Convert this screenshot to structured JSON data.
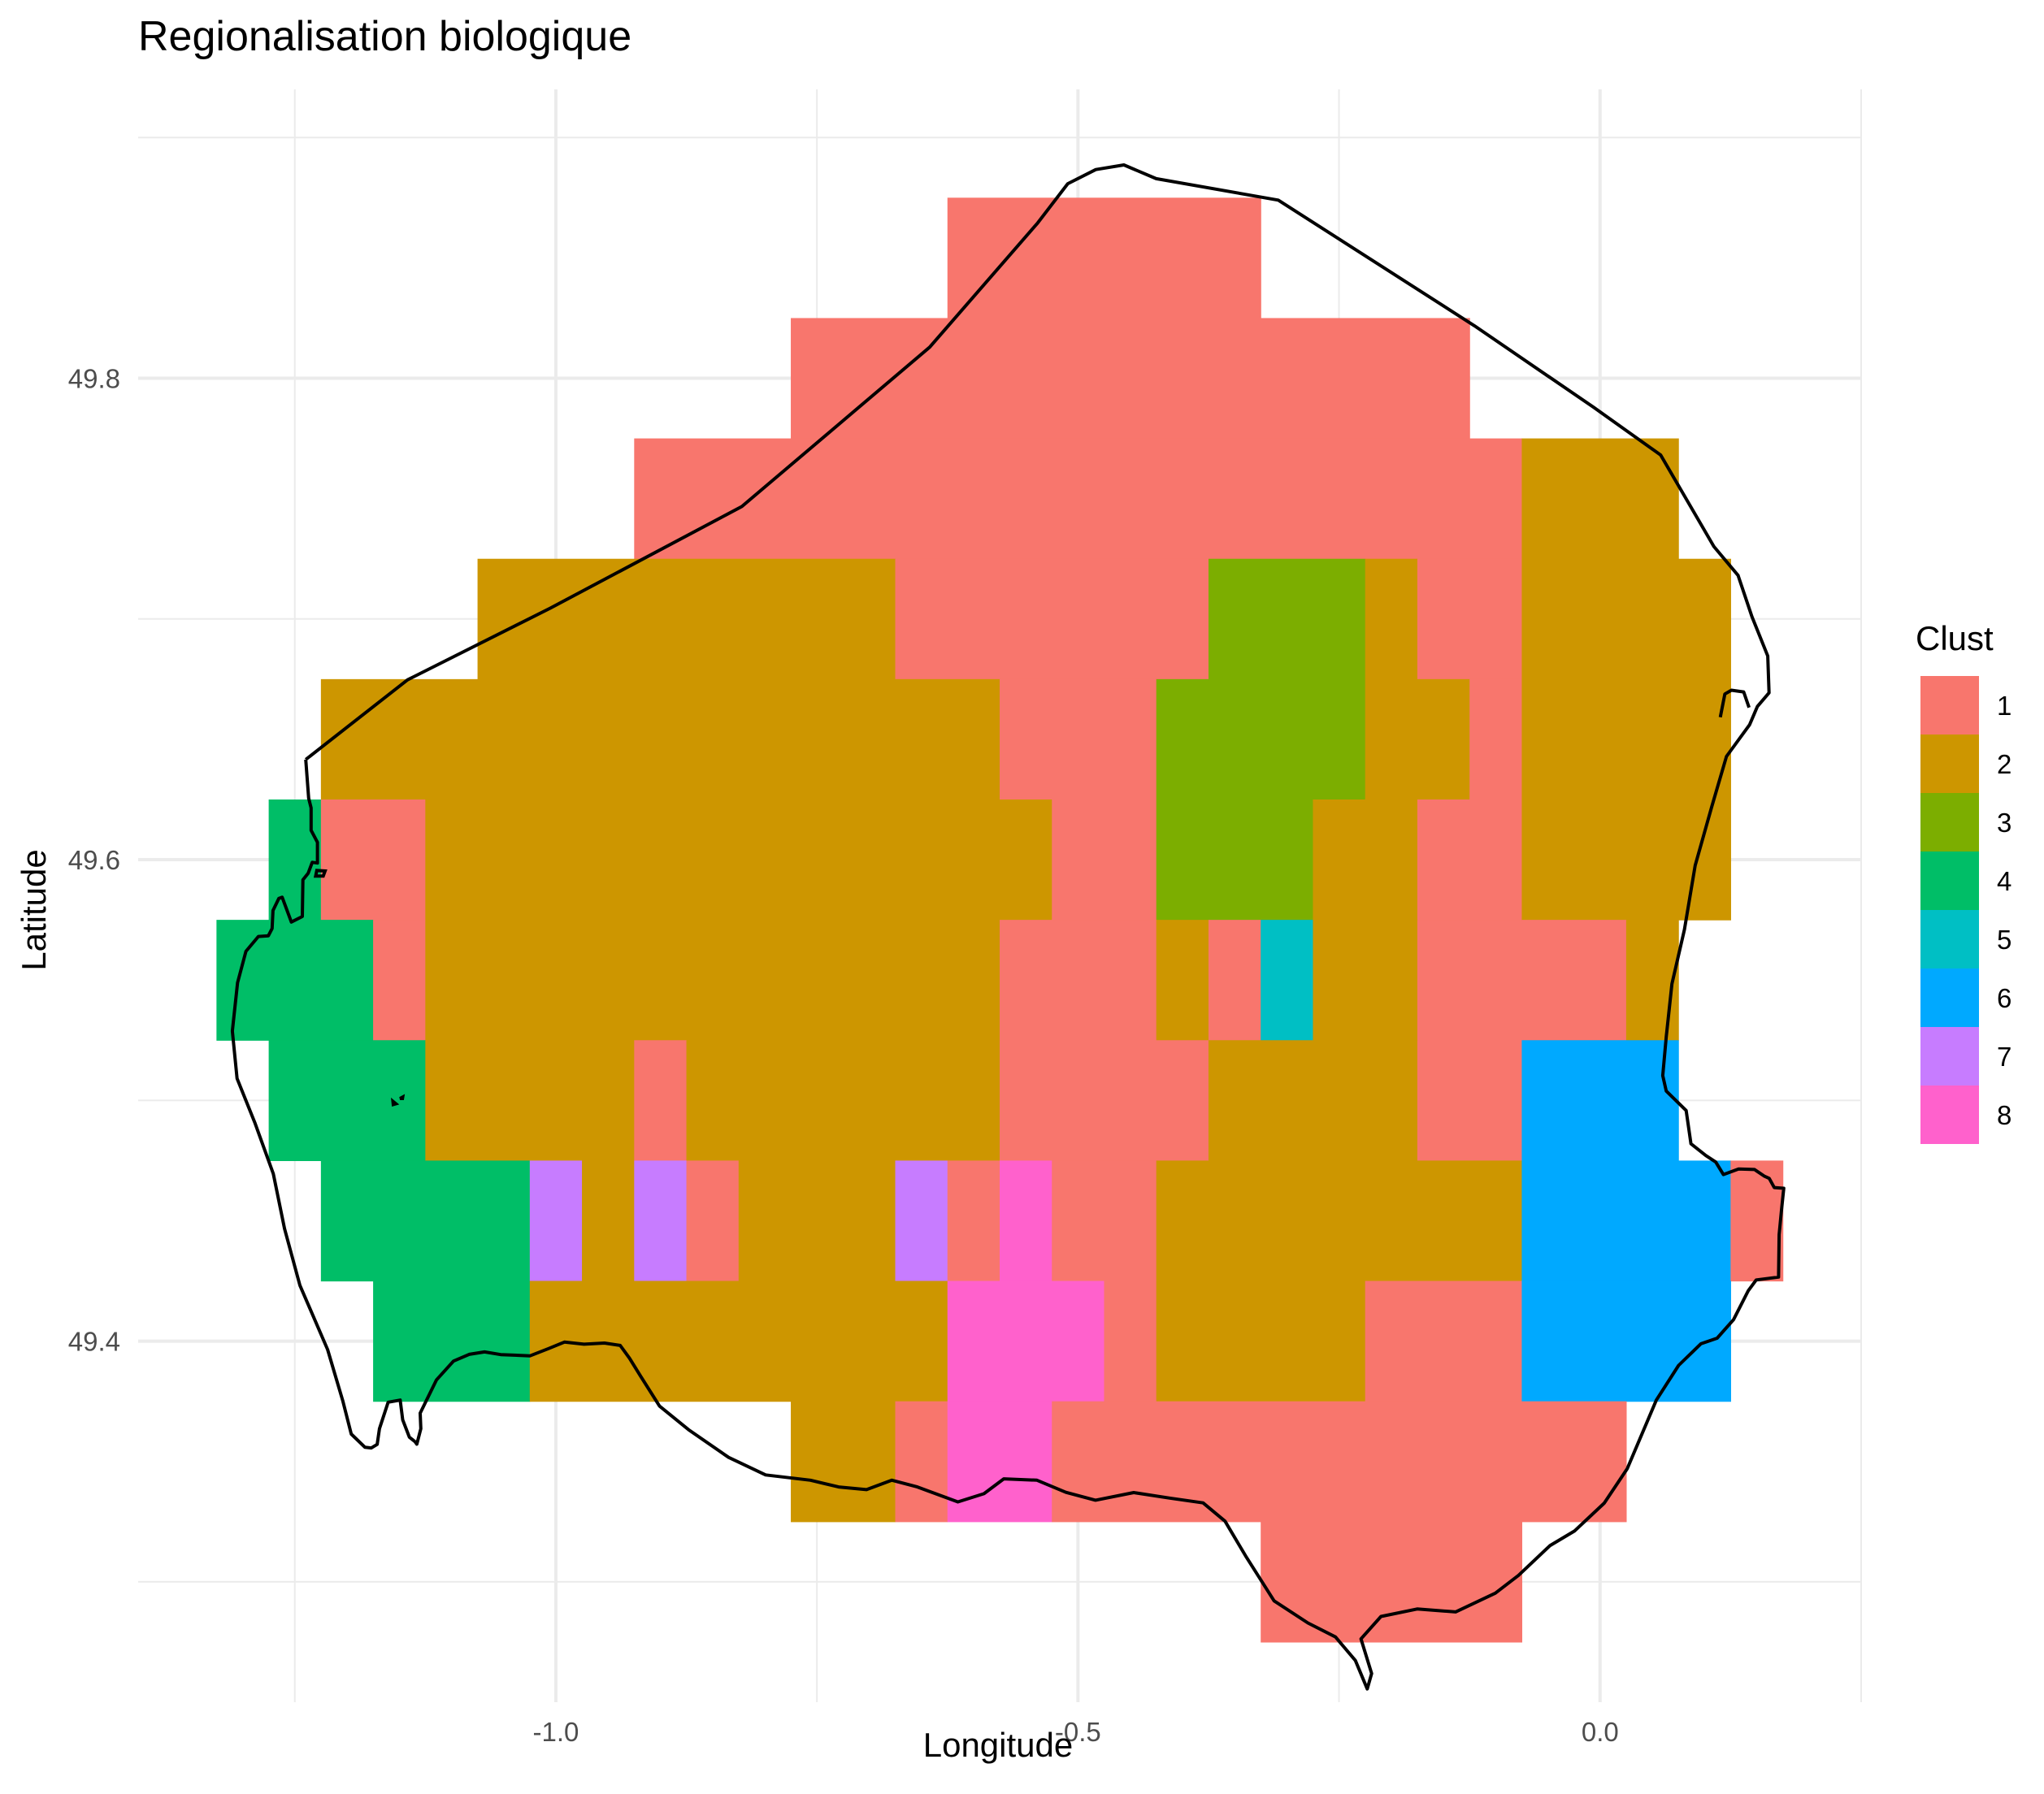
{
  "chart_data": {
    "type": "heatmap",
    "title": "Regionalisation biologique",
    "xlabel": "Longitude",
    "ylabel": "Latitude",
    "x_ticks": [
      -1.0,
      -0.5,
      0.0
    ],
    "x_tick_labels": [
      "-1.0",
      "-0.5",
      "0.0"
    ],
    "y_ticks": [
      49.4,
      49.6,
      49.8
    ],
    "y_tick_labels": [
      "49.4",
      "49.6",
      "49.8"
    ],
    "xlim": [
      -1.4,
      0.25
    ],
    "ylim": [
      49.25,
      49.92
    ],
    "grid": true,
    "legend": {
      "title": "Clust",
      "position": "right",
      "entries": [
        {
          "label": "1",
          "color": "#F8766D"
        },
        {
          "label": "2",
          "color": "#CD9600"
        },
        {
          "label": "3",
          "color": "#7CAE00"
        },
        {
          "label": "4",
          "color": "#00BE67"
        },
        {
          "label": "5",
          "color": "#00BFC4"
        },
        {
          "label": "6",
          "color": "#00A9FF"
        },
        {
          "label": "7",
          "color": "#C77CFF"
        },
        {
          "label": "8",
          "color": "#FF61CC"
        }
      ]
    },
    "cell_size": {
      "dlon": 0.05,
      "dlat": 0.05
    },
    "rows": [
      {
        "lat": 49.85,
        "cells": [
          [
            -0.625,
            -0.325,
            1
          ]
        ]
      },
      {
        "lat": 49.8,
        "cells": [
          [
            -0.775,
            -0.125,
            1
          ]
        ]
      },
      {
        "lat": 49.75,
        "cells": [
          [
            -0.925,
            -0.075,
            1
          ],
          [
            -0.075,
            0.075,
            2
          ]
        ]
      },
      {
        "lat": 49.7,
        "cells": [
          [
            -1.075,
            -0.675,
            2
          ],
          [
            -0.675,
            -0.375,
            1
          ],
          [
            -0.375,
            -0.225,
            3
          ],
          [
            -0.225,
            -0.175,
            2
          ],
          [
            -0.175,
            -0.075,
            1
          ],
          [
            -0.075,
            0.125,
            2
          ]
        ]
      },
      {
        "lat": 49.65,
        "cells": [
          [
            -1.225,
            -0.575,
            2
          ],
          [
            -0.575,
            -0.425,
            1
          ],
          [
            -0.425,
            -0.225,
            3
          ],
          [
            -0.225,
            -0.125,
            2
          ],
          [
            -0.125,
            -0.075,
            1
          ],
          [
            -0.075,
            0.125,
            2
          ]
        ]
      },
      {
        "lat": 49.6,
        "cells": [
          [
            -1.275,
            -1.225,
            4
          ],
          [
            -1.225,
            -1.125,
            1
          ],
          [
            -1.125,
            -0.525,
            2
          ],
          [
            -0.525,
            -0.425,
            1
          ],
          [
            -0.425,
            -0.275,
            3
          ],
          [
            -0.275,
            -0.175,
            2
          ],
          [
            -0.175,
            -0.075,
            1
          ],
          [
            -0.075,
            0.125,
            2
          ]
        ]
      },
      {
        "lat": 49.55,
        "cells": [
          [
            -1.325,
            -1.175,
            4
          ],
          [
            -1.175,
            -1.125,
            1
          ],
          [
            -1.125,
            -0.575,
            2
          ],
          [
            -0.575,
            -0.425,
            1
          ],
          [
            -0.425,
            -0.375,
            2
          ],
          [
            -0.375,
            -0.325,
            1
          ],
          [
            -0.325,
            -0.275,
            5
          ],
          [
            -0.275,
            -0.175,
            2
          ],
          [
            -0.175,
            0.025,
            1
          ],
          [
            0.025,
            0.075,
            2
          ]
        ]
      },
      {
        "lat": 49.5,
        "cells": [
          [
            -1.275,
            -1.125,
            4
          ],
          [
            -1.125,
            -0.925,
            2
          ],
          [
            -0.925,
            -0.875,
            1
          ],
          [
            -0.875,
            -0.575,
            2
          ],
          [
            -0.575,
            -0.375,
            1
          ],
          [
            -0.375,
            -0.175,
            2
          ],
          [
            -0.175,
            -0.075,
            1
          ],
          [
            -0.075,
            0.075,
            6
          ]
        ]
      },
      {
        "lat": 49.45,
        "cells": [
          [
            -1.225,
            -1.025,
            4
          ],
          [
            -1.025,
            -0.975,
            7
          ],
          [
            -0.975,
            -0.925,
            2
          ],
          [
            -0.925,
            -0.875,
            7
          ],
          [
            -0.875,
            -0.825,
            1
          ],
          [
            -0.825,
            -0.675,
            2
          ],
          [
            -0.675,
            -0.625,
            7
          ],
          [
            -0.625,
            -0.575,
            1
          ],
          [
            -0.575,
            -0.525,
            8
          ],
          [
            -0.525,
            -0.425,
            1
          ],
          [
            -0.425,
            -0.075,
            2
          ],
          [
            -0.075,
            0.125,
            6
          ],
          [
            0.125,
            0.175,
            1
          ]
        ]
      },
      {
        "lat": 49.4,
        "cells": [
          [
            -1.175,
            -1.025,
            4
          ],
          [
            -1.025,
            -0.625,
            2
          ],
          [
            -0.625,
            -0.475,
            8
          ],
          [
            -0.475,
            -0.425,
            1
          ],
          [
            -0.425,
            -0.225,
            2
          ],
          [
            -0.225,
            -0.075,
            1
          ],
          [
            -0.075,
            0.125,
            6
          ]
        ]
      },
      {
        "lat": 49.35,
        "cells": [
          [
            -0.775,
            -0.675,
            2
          ],
          [
            -0.675,
            -0.625,
            1
          ],
          [
            -0.625,
            -0.525,
            8
          ],
          [
            -0.525,
            0.025,
            1
          ]
        ]
      },
      {
        "lat": 49.3,
        "cells": [
          [
            -0.325,
            -0.075,
            1
          ]
        ]
      }
    ],
    "coastline": [
      [
        -1.2395,
        49.6416
      ],
      [
        -1.2367,
        49.6255
      ],
      [
        -1.2344,
        49.6215
      ],
      [
        -1.2344,
        49.6122
      ],
      [
        -1.2283,
        49.6072
      ],
      [
        -1.2283,
        49.5986
      ],
      [
        -1.2333,
        49.5989
      ],
      [
        -1.2372,
        49.5944
      ],
      [
        -1.2422,
        49.5916
      ],
      [
        -1.2428,
        49.5764
      ],
      [
        -1.2533,
        49.5741
      ],
      [
        -1.2621,
        49.5844
      ],
      [
        -1.2653,
        49.5839
      ],
      [
        -1.2709,
        49.5789
      ],
      [
        -1.2717,
        49.5714
      ],
      [
        -1.2753,
        49.5684
      ],
      [
        -1.2849,
        49.5681
      ],
      [
        -1.2968,
        49.5619
      ],
      [
        -1.3048,
        49.5489
      ],
      [
        -1.3098,
        49.5288
      ],
      [
        -1.3053,
        49.5091
      ],
      [
        -1.2883,
        49.4908
      ],
      [
        -1.2706,
        49.4695
      ],
      [
        -1.2598,
        49.4467
      ],
      [
        -1.2451,
        49.4232
      ],
      [
        -1.2186,
        49.3965
      ],
      [
        -1.2041,
        49.3753
      ],
      [
        -1.1959,
        49.3614
      ],
      [
        -1.1828,
        49.3559
      ],
      [
        -1.1767,
        49.3556
      ],
      [
        -1.1711,
        49.3571
      ],
      [
        -1.1689,
        49.3636
      ],
      [
        -1.1606,
        49.3746
      ],
      [
        -1.1491,
        49.3755
      ],
      [
        -1.1467,
        49.3673
      ],
      [
        -1.1403,
        49.3601
      ],
      [
        -1.1348,
        49.3582
      ],
      [
        -1.1331,
        49.3572
      ],
      [
        -1.1293,
        49.3636
      ],
      [
        -1.1299,
        49.3701
      ],
      [
        -1.1143,
        49.3839
      ],
      [
        -1.098,
        49.3917
      ],
      [
        -1.083,
        49.3945
      ],
      [
        -1.0683,
        49.3955
      ],
      [
        -1.0528,
        49.3944
      ],
      [
        -1.0247,
        49.3939
      ],
      [
        -1.007,
        49.3969
      ],
      [
        -0.9918,
        49.3996
      ],
      [
        -0.973,
        49.3987
      ],
      [
        -0.9535,
        49.3992
      ],
      [
        -0.9384,
        49.3982
      ],
      [
        -0.9295,
        49.3929
      ],
      [
        -0.9189,
        49.3855
      ],
      [
        -0.9007,
        49.373
      ],
      [
        -0.8729,
        49.3632
      ],
      [
        -0.8346,
        49.3517
      ],
      [
        -0.7991,
        49.3444
      ],
      [
        -0.7562,
        49.3422
      ],
      [
        -0.7292,
        49.3394
      ],
      [
        -0.7025,
        49.3383
      ],
      [
        -0.6782,
        49.3422
      ],
      [
        -0.6538,
        49.3394
      ],
      [
        -0.615,
        49.3332
      ],
      [
        -0.59,
        49.3366
      ],
      [
        -0.571,
        49.3428
      ],
      [
        -0.5393,
        49.3422
      ],
      [
        -0.5116,
        49.3372
      ],
      [
        -0.4832,
        49.3339
      ],
      [
        -0.4466,
        49.3371
      ],
      [
        -0.4122,
        49.3348
      ],
      [
        -0.3802,
        49.3328
      ],
      [
        -0.3592,
        49.3252
      ],
      [
        -0.3395,
        49.3108
      ],
      [
        -0.3122,
        49.2921
      ],
      [
        -0.2798,
        49.2829
      ],
      [
        -0.2534,
        49.2771
      ],
      [
        -0.2343,
        49.2673
      ],
      [
        -0.223,
        49.2555
      ],
      [
        -0.2188,
        49.2619
      ],
      [
        -0.229,
        49.2763
      ],
      [
        -0.2098,
        49.2856
      ],
      [
        -0.1752,
        49.2887
      ],
      [
        -0.1384,
        49.2875
      ],
      [
        -0.1003,
        49.2953
      ],
      [
        -0.0781,
        49.3027
      ],
      [
        -0.0481,
        49.315
      ],
      [
        -0.0246,
        49.3211
      ],
      [
        0.004,
        49.3327
      ],
      [
        0.026,
        49.347
      ],
      [
        0.0539,
        49.3755
      ],
      [
        0.0752,
        49.3899
      ],
      [
        0.0965,
        49.3989
      ],
      [
        0.1121,
        49.4012
      ],
      [
        0.1278,
        49.4089
      ],
      [
        0.142,
        49.421
      ],
      [
        0.1495,
        49.4254
      ],
      [
        0.1709,
        49.4266
      ],
      [
        0.1715,
        49.4443
      ],
      [
        0.1737,
        49.4544
      ],
      [
        0.1759,
        49.4635
      ],
      [
        0.1668,
        49.4638
      ],
      [
        0.162,
        49.4676
      ],
      [
        0.1571,
        49.4686
      ],
      [
        0.1479,
        49.4713
      ],
      [
        0.1326,
        49.4715
      ],
      [
        0.1181,
        49.4692
      ],
      [
        0.1108,
        49.4744
      ],
      [
        0.1013,
        49.4771
      ],
      [
        0.087,
        49.482
      ],
      [
        0.0824,
        49.4958
      ],
      [
        0.0634,
        49.5039
      ],
      [
        0.06,
        49.5103
      ],
      [
        0.0634,
        49.5264
      ],
      [
        0.0688,
        49.5484
      ],
      [
        0.0808,
        49.571
      ],
      [
        0.0911,
        49.5976
      ],
      [
        0.1069,
        49.6219
      ],
      [
        0.121,
        49.6429
      ],
      [
        0.1432,
        49.6561
      ],
      [
        0.1506,
        49.6636
      ],
      [
        0.1618,
        49.6693
      ],
      [
        0.1606,
        49.6846
      ],
      [
        0.1455,
        49.7009
      ],
      [
        0.1322,
        49.7181
      ],
      [
        0.109,
        49.7301
      ],
      [
        0.058,
        49.7681
      ],
      [
        -0.0061,
        49.7879
      ],
      [
        -0.1204,
        49.8218
      ],
      [
        -0.3082,
        49.874
      ],
      [
        -0.4251,
        49.8829
      ],
      [
        -0.456,
        49.8886
      ],
      [
        -0.4829,
        49.8867
      ],
      [
        -0.5098,
        49.8808
      ],
      [
        -0.5386,
        49.8645
      ],
      [
        -0.642,
        49.8129
      ],
      [
        -0.8219,
        49.7467
      ],
      [
        -1.0053,
        49.7045
      ],
      [
        -1.142,
        49.6747
      ],
      [
        -1.2395,
        49.6416
      ]
    ],
    "coastline_detail_points": [
      [
        0.1151,
        49.6592
      ],
      [
        0.1195,
        49.6688
      ],
      [
        0.1258,
        49.6704
      ],
      [
        0.1375,
        49.6697
      ],
      [
        0.1427,
        49.6632
      ]
    ],
    "islands": [
      [
        [
          -1.2289,
          49.5955
        ],
        [
          -1.23,
          49.5932
        ],
        [
          -1.2228,
          49.5932
        ],
        [
          -1.221,
          49.5953
        ],
        [
          -1.2289,
          49.5955
        ]
      ],
      [
        [
          -1.156,
          49.4996
        ],
        [
          -1.1557,
          49.4983
        ],
        [
          -1.1532,
          49.4986
        ],
        [
          -1.156,
          49.4996
        ]
      ],
      [
        [
          -1.1492,
          49.5008
        ],
        [
          -1.1467,
          49.5014
        ],
        [
          -1.1469,
          49.5008
        ],
        [
          -1.1492,
          49.5008
        ]
      ]
    ]
  }
}
